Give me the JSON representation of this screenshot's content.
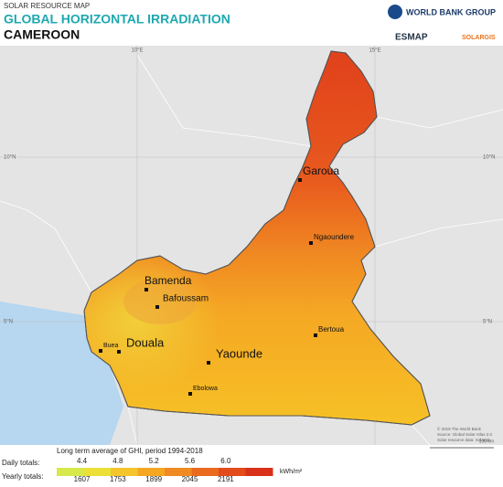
{
  "header": {
    "kicker": "SOLAR RESOURCE MAP",
    "title": "GLOBAL HORIZONTAL IRRADIATION",
    "country": "CAMEROON",
    "logos": [
      "WORLD BANK GROUP",
      "ESMAP",
      "SOLARGIS"
    ]
  },
  "graticule": {
    "top": [
      "10°E",
      "15°E"
    ],
    "left": [
      "10°N",
      "5°N"
    ],
    "right": [
      "10°N",
      "5°N"
    ]
  },
  "cities": [
    "Garoua",
    "Ngaoundere",
    "Bamenda",
    "Bafoussam",
    "Buea",
    "Douala",
    "Yaounde",
    "Bertoua",
    "Ebolowa"
  ],
  "credit": [
    "© 2019 The World Bank",
    "Source: Global Solar Atlas 2.0",
    "Solar resource data: Solargis"
  ],
  "scale": "100 km",
  "legend": {
    "caption": "Long term average of GHI, period 1994-2018",
    "daily_label": "Daily totals:",
    "daily": [
      "4.4",
      "4.8",
      "5.2",
      "5.6",
      "6.0"
    ],
    "unit": "kWh/m²",
    "yearly_label": "Yearly totals:",
    "yearly": [
      "1607",
      "1753",
      "1899",
      "2045",
      "2191"
    ]
  }
}
